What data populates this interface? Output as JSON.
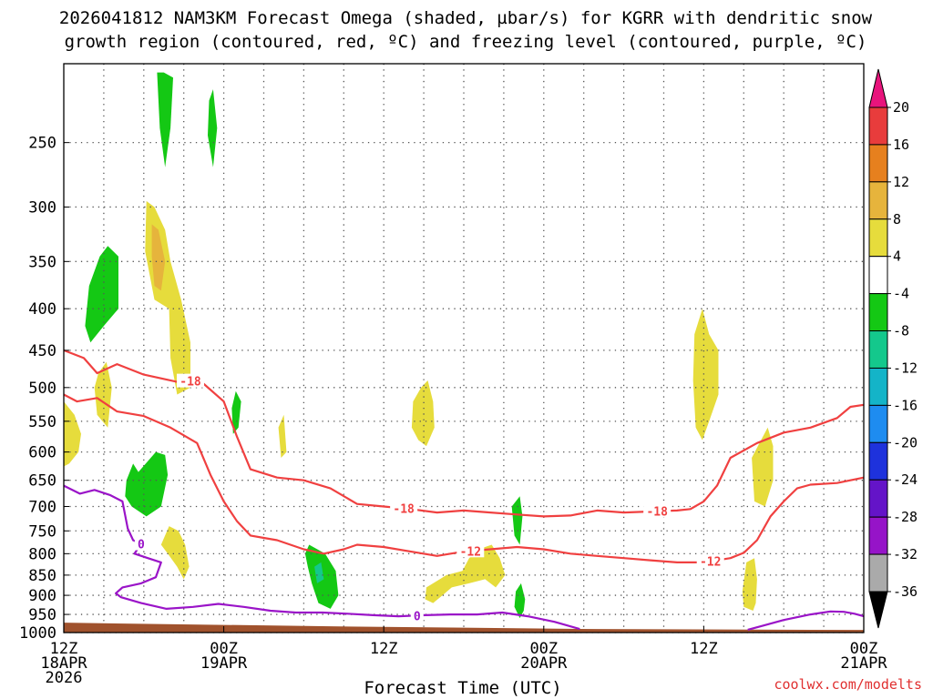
{
  "title_line1": "2026041812 NAM3KM Forecast Omega (shaded, µbar/s) for KGRR with dendritic snow",
  "title_line2": "growth region (contoured, red, ºC) and freezing level (contoured, purple, ºC)",
  "credit": "coolwx.com/modelts",
  "chart_data": {
    "type": "contour",
    "title": "2026041812 NAM3KM Forecast Omega (shaded, µbar/s) for KGRR with dendritic snow growth region (contoured, red, ºC) and freezing level (contoured, purple, ºC)",
    "xlabel": "Forecast Time (UTC)",
    "ylabel": "",
    "xlim_hours": [
      0,
      60
    ],
    "ylim_hpa": [
      1000,
      200
    ],
    "y_ticks": [
      250,
      300,
      350,
      400,
      450,
      500,
      550,
      600,
      650,
      700,
      750,
      800,
      850,
      900,
      950,
      1000
    ],
    "x_ticks": [
      {
        "hour": 0,
        "lines": [
          "12Z",
          "18APR",
          "2026"
        ]
      },
      {
        "hour": 12,
        "lines": [
          "00Z",
          "19APR"
        ]
      },
      {
        "hour": 24,
        "lines": [
          "12Z"
        ]
      },
      {
        "hour": 36,
        "lines": [
          "00Z",
          "20APR"
        ]
      },
      {
        "hour": 48,
        "lines": [
          "12Z"
        ]
      },
      {
        "hour": 60,
        "lines": [
          "00Z",
          "21APR"
        ]
      }
    ],
    "grid": true,
    "colorbar": {
      "units": "µbar/s",
      "levels": [
        20,
        16,
        12,
        8,
        4,
        -4,
        -8,
        -12,
        -16,
        -20,
        -24,
        -28,
        -32,
        -36
      ],
      "colors": [
        "#e8147c",
        "#e83c3c",
        "#e6801e",
        "#e6b43c",
        "#e6dc3c",
        "#ffffff",
        "#14c814",
        "#14c88c",
        "#14b4c8",
        "#1e8cf0",
        "#1e32dc",
        "#6414c8",
        "#9614c8",
        "#aaaaaa",
        "#000000"
      ]
    },
    "omega_regions": [
      {
        "color": "#14c814",
        "label": "-4",
        "hour": 7.6,
        "p": 255
      },
      {
        "color": "#14c814",
        "label": "-4",
        "hour": 11.2,
        "p": 255
      },
      {
        "color": "#e6dc3c",
        "label": "4",
        "hour": 7.2,
        "p": 360
      },
      {
        "color": "#e6b43c",
        "label": "8",
        "hour": 7.0,
        "p": 355
      },
      {
        "color": "#14c814",
        "label": "-4",
        "hour": 2.8,
        "p": 385
      },
      {
        "color": "#e6dc3c",
        "label": "4",
        "hour": 3.1,
        "p": 500
      },
      {
        "color": "#e6dc3c",
        "label": "4",
        "hour": 0.4,
        "p": 590
      },
      {
        "color": "#14c814",
        "label": "-4",
        "hour": 6.0,
        "p": 650
      },
      {
        "color": "#e6dc3c",
        "label": "4",
        "hour": 8.2,
        "p": 780
      },
      {
        "color": "#14c814",
        "label": "-4",
        "hour": 13.0,
        "p": 540
      },
      {
        "color": "#e6dc3c",
        "label": "4",
        "hour": 16.4,
        "p": 585
      },
      {
        "color": "#14c814",
        "label": "-4",
        "hour": 19.2,
        "p": 840
      },
      {
        "color": "#14c88c",
        "label": "-8",
        "hour": 19.2,
        "p": 845
      },
      {
        "color": "#e6dc3c",
        "label": "4",
        "hour": 27.0,
        "p": 540
      },
      {
        "color": "#e6dc3c",
        "label": "4",
        "hour": 30.5,
        "p": 830
      },
      {
        "color": "#14c814",
        "label": "-4",
        "hour": 34.0,
        "p": 730
      },
      {
        "color": "#14c814",
        "label": "-4",
        "hour": 34.3,
        "p": 920
      },
      {
        "color": "#e6dc3c",
        "label": "4",
        "hour": 48.0,
        "p": 500
      },
      {
        "color": "#e6dc3c",
        "label": "4",
        "hour": 52.6,
        "p": 620
      },
      {
        "color": "#e6dc3c",
        "label": "4",
        "hour": 51.5,
        "p": 875
      }
    ],
    "contours": [
      {
        "name": "dgz-top",
        "color": "#f04040",
        "label": "-18",
        "label_hours": [
          9.5,
          25.5,
          44.5
        ],
        "hours": [
          0,
          1.5,
          2.5,
          4,
          6,
          8.5,
          10.2,
          12,
          13,
          14,
          16,
          18,
          20,
          22,
          24,
          26,
          28,
          30,
          32,
          34,
          36,
          38,
          40,
          42,
          44,
          46,
          47,
          48,
          49,
          50,
          52,
          54,
          56,
          58,
          59,
          60
        ],
        "hpa": [
          450,
          460,
          480,
          468,
          482,
          492,
          490,
          520,
          575,
          630,
          645,
          650,
          665,
          695,
          700,
          705,
          712,
          708,
          712,
          716,
          720,
          718,
          708,
          712,
          710,
          708,
          705,
          690,
          660,
          610,
          585,
          568,
          560,
          545,
          528,
          525
        ]
      },
      {
        "name": "dgz-bottom",
        "color": "#f04040",
        "label": "-12",
        "label_hours": [
          30.5,
          48.5
        ],
        "hours": [
          0,
          1,
          2.5,
          4,
          6,
          8,
          10,
          11,
          12,
          13,
          14,
          15,
          16,
          18,
          19.5,
          21,
          22,
          24,
          26,
          28,
          30,
          32,
          34,
          36,
          38,
          40,
          42,
          44,
          46,
          48,
          50,
          51,
          52,
          53,
          54,
          55,
          56,
          58,
          60
        ],
        "hpa": [
          510,
          520,
          515,
          535,
          542,
          560,
          585,
          640,
          690,
          730,
          760,
          765,
          770,
          790,
          800,
          790,
          780,
          785,
          795,
          805,
          795,
          790,
          785,
          790,
          800,
          805,
          810,
          815,
          820,
          820,
          810,
          798,
          770,
          720,
          690,
          665,
          658,
          655,
          645
        ]
      },
      {
        "name": "freezing-level",
        "color": "#9a14c8",
        "label": "0",
        "label_hours": [
          5.8,
          26.5
        ],
        "hours": [
          0,
          1.2,
          2.3,
          3.5,
          4.4,
          4.8,
          5.2,
          5.8,
          5.3,
          6.3,
          7.3,
          6.9,
          5.8,
          4.4,
          3.9,
          4.3,
          5.8,
          7.7,
          9.7,
          11.6,
          13.5,
          15.5,
          17.4,
          19.4,
          21.3,
          23.2,
          25.1,
          27.1,
          29.0,
          31.0,
          32.9,
          34.8,
          36.8,
          38.7
        ],
        "hpa": [
          660,
          675,
          668,
          678,
          690,
          745,
          770,
          778,
          800,
          810,
          820,
          855,
          870,
          880,
          895,
          905,
          920,
          935,
          930,
          922,
          930,
          940,
          945,
          945,
          948,
          952,
          955,
          952,
          950,
          950,
          945,
          955,
          970,
          990
        ]
      },
      {
        "name": "freezing-level-2",
        "color": "#9a14c8",
        "label": "",
        "hours": [
          51.3,
          52.5,
          54,
          56,
          57.5,
          58.5,
          59.3,
          60
        ],
        "hpa": [
          992,
          980,
          965,
          950,
          942,
          943,
          948,
          955
        ]
      }
    ],
    "terrain": {
      "color": "#a0522d",
      "surface_hpa": 975
    }
  }
}
